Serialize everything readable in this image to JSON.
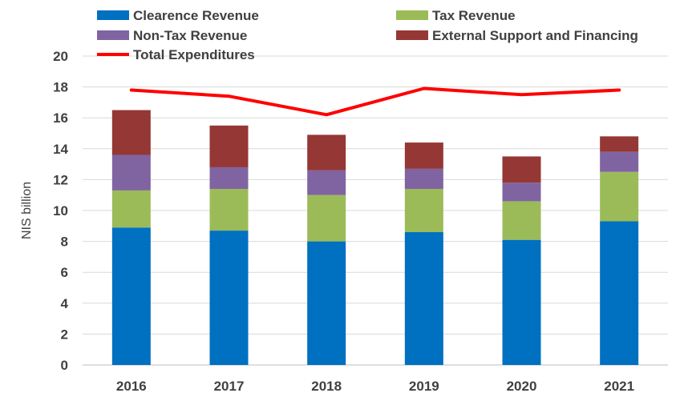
{
  "chart_data": {
    "type": "bar",
    "stacked": true,
    "categories": [
      "2016",
      "2017",
      "2018",
      "2019",
      "2020",
      "2021"
    ],
    "series": [
      {
        "name": "Clearence Revenue",
        "color": "#0070c0",
        "values": [
          8.9,
          8.7,
          8.0,
          8.6,
          8.1,
          9.3
        ]
      },
      {
        "name": "Tax Revenue",
        "color": "#9bbb59",
        "values": [
          2.4,
          2.7,
          3.0,
          2.8,
          2.5,
          3.2
        ]
      },
      {
        "name": "Non-Tax Revenue",
        "color": "#8064a2",
        "values": [
          2.3,
          1.4,
          1.6,
          1.3,
          1.2,
          1.3
        ]
      },
      {
        "name": "External Support and Financing",
        "color": "#953735",
        "values": [
          2.9,
          2.7,
          2.3,
          1.7,
          1.7,
          1.0
        ]
      }
    ],
    "line_series": {
      "name": "Total Expenditures",
      "color": "#ff0000",
      "values": [
        17.8,
        17.4,
        16.2,
        17.9,
        17.5,
        17.8
      ]
    },
    "ylabel": "NIS billion",
    "xlabel": "",
    "title": "",
    "ylim": [
      0,
      20
    ],
    "yticks": [
      "0",
      "2",
      "4",
      "6",
      "8",
      "10",
      "12",
      "14",
      "16",
      "18",
      "20"
    ],
    "grid": true,
    "legend_position": "top"
  }
}
